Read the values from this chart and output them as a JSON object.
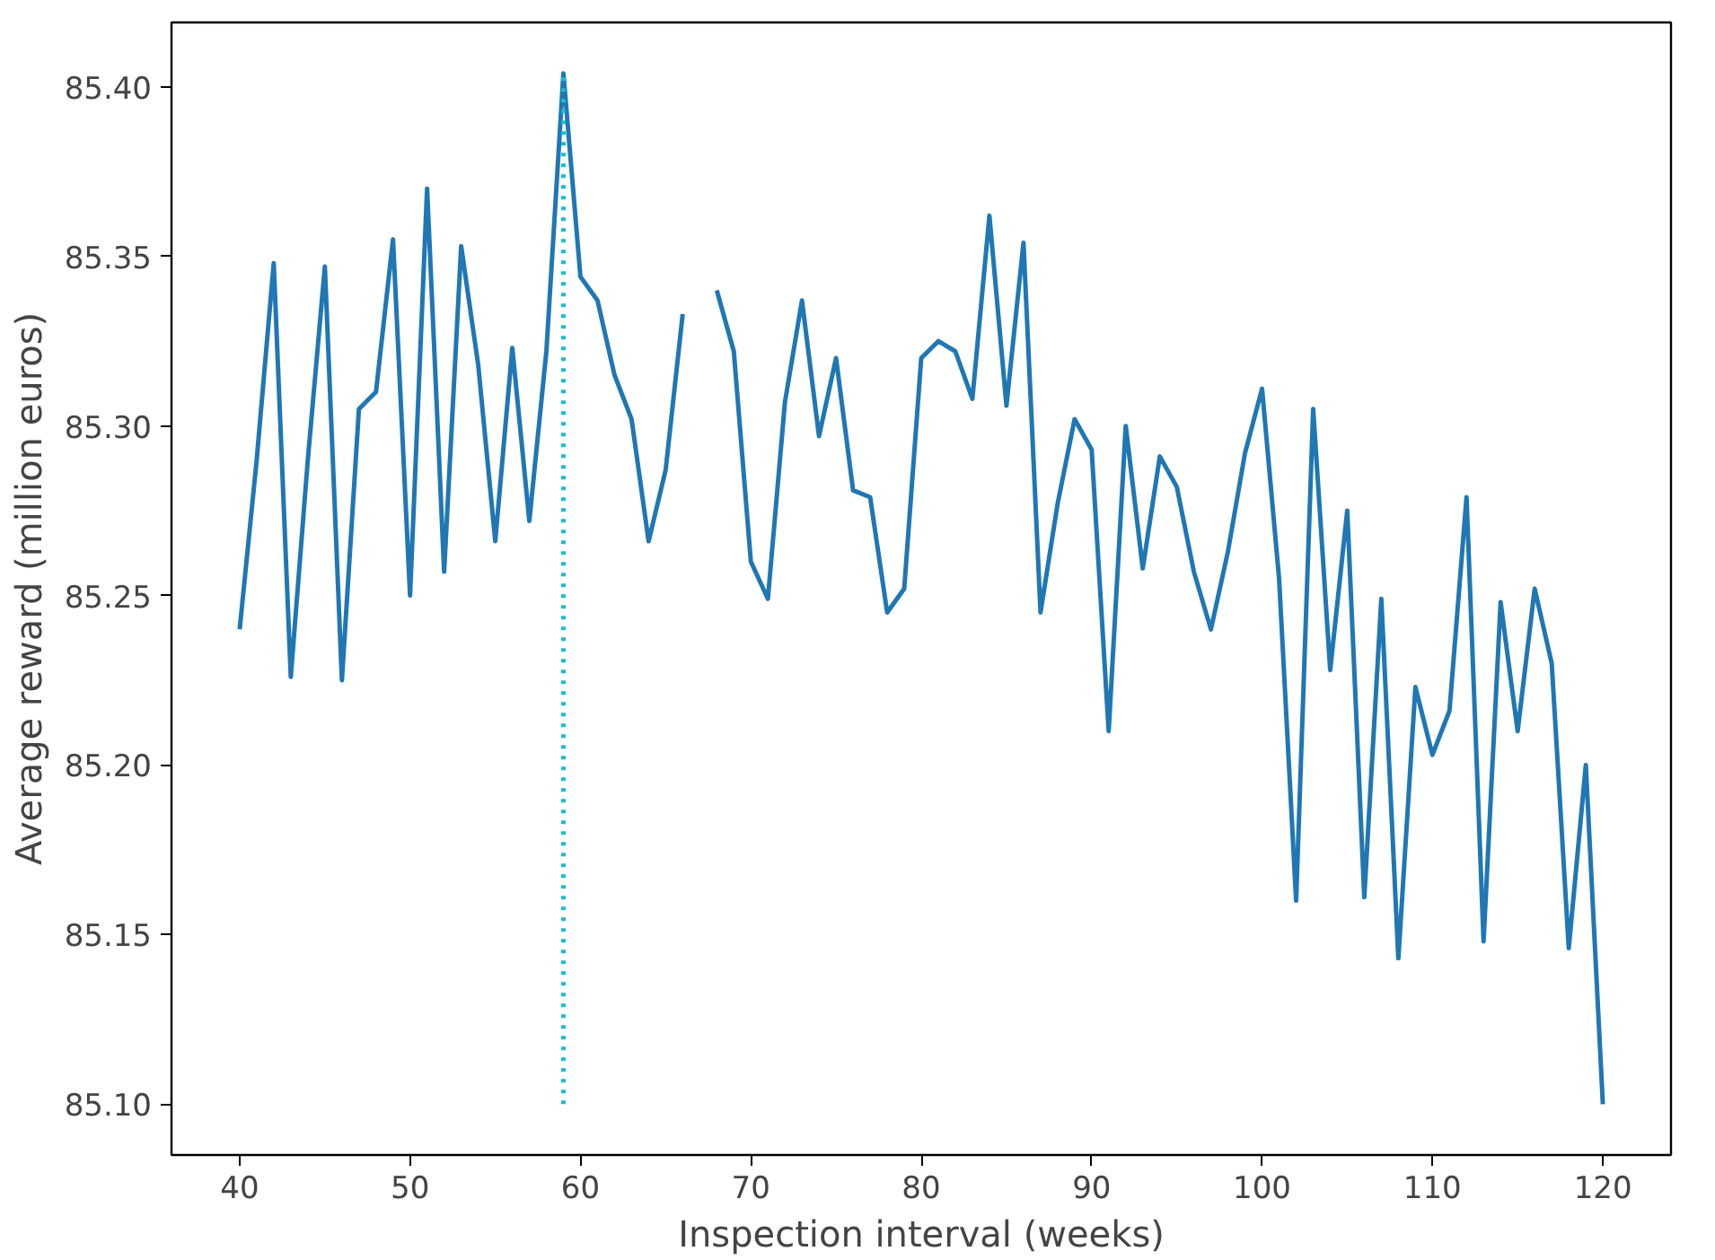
{
  "chart_data": {
    "type": "line",
    "xlabel": "Inspection interval (weeks)",
    "ylabel": "Average reward (million euros)",
    "x": [
      40,
      41,
      42,
      43,
      44,
      45,
      46,
      47,
      48,
      49,
      50,
      51,
      52,
      53,
      54,
      55,
      56,
      57,
      58,
      59,
      60,
      61,
      62,
      63,
      64,
      65,
      66,
      67,
      68,
      69,
      70,
      71,
      72,
      73,
      74,
      75,
      76,
      77,
      78,
      79,
      80,
      81,
      82,
      83,
      84,
      85,
      86,
      87,
      88,
      89,
      90,
      91,
      92,
      93,
      94,
      95,
      96,
      97,
      98,
      99,
      100,
      101,
      102,
      103,
      104,
      105,
      106,
      107,
      108,
      109,
      110,
      111,
      112,
      113,
      114,
      115,
      116,
      117,
      118,
      119,
      120
    ],
    "series": [
      {
        "color": "#1f77b4",
        "values": [
          85.24,
          85.29,
          85.348,
          85.226,
          85.29,
          85.347,
          85.225,
          85.305,
          85.31,
          85.355,
          85.25,
          85.37,
          85.257,
          85.353,
          85.318,
          85.266,
          85.323,
          85.272,
          85.322,
          85.404,
          85.344,
          85.337,
          85.315,
          85.302,
          85.266,
          85.287,
          85.333,
          null,
          85.34,
          85.322,
          85.26,
          85.249,
          85.307,
          85.337,
          85.297,
          85.32,
          85.281,
          85.279,
          85.245,
          85.252,
          85.32,
          85.325,
          85.322,
          85.308,
          85.362,
          85.306,
          85.354,
          85.245,
          85.277,
          85.302,
          85.293,
          85.21,
          85.3,
          85.258,
          85.291,
          85.282,
          85.257,
          85.24,
          85.263,
          85.292,
          85.311,
          85.255,
          85.16,
          85.305,
          85.228,
          85.275,
          85.161,
          85.249,
          85.143,
          85.223,
          85.203,
          85.216,
          85.279,
          85.148,
          85.248,
          85.21,
          85.252,
          85.23,
          85.146,
          85.2,
          85.1
        ]
      }
    ],
    "xlim": [
      36,
      124
    ],
    "ylim": [
      85.085,
      85.419
    ],
    "xticks": [
      40,
      50,
      60,
      70,
      80,
      90,
      100,
      110,
      120
    ],
    "yticks": [
      {
        "value": 85.1,
        "label": "85.10"
      },
      {
        "value": 85.15,
        "label": "85.15"
      },
      {
        "value": 85.2,
        "label": "85.20"
      },
      {
        "value": 85.25,
        "label": "85.25"
      },
      {
        "value": 85.3,
        "label": "85.30"
      },
      {
        "value": 85.35,
        "label": "85.35"
      },
      {
        "value": 85.4,
        "label": "85.40"
      }
    ],
    "ref_lines": [
      {
        "axis": "x",
        "value": 59,
        "color": "#17becf",
        "line_style": "dotted"
      }
    ],
    "grid": false,
    "marker": "none",
    "line_style": "solid"
  }
}
